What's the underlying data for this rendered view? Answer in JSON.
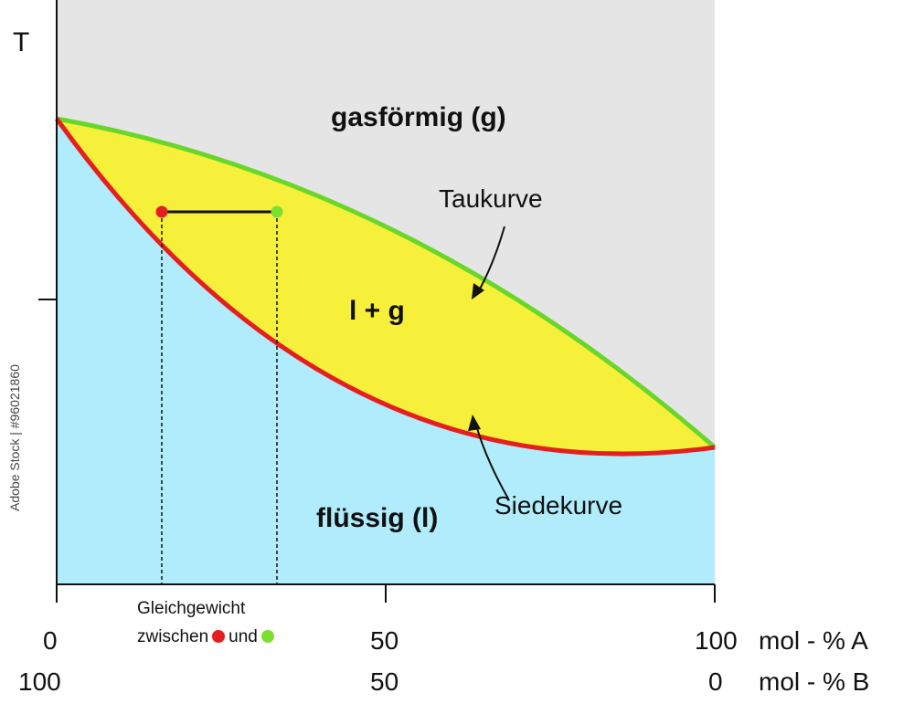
{
  "y_axis_label": "T",
  "regions": {
    "gas": "gasförmig (g)",
    "two_phase": "l + g",
    "liquid": "flüssig (l)"
  },
  "curves": {
    "dew": "Taukurve",
    "boiling": "Siedekurve"
  },
  "equilibrium_note": {
    "line1": "Gleichgewicht",
    "line2_prefix": "zwischen",
    "line2_mid": "und"
  },
  "x_axis_A": {
    "left": "0",
    "mid": "50",
    "right": "100",
    "unit": "mol - % A"
  },
  "x_axis_B": {
    "left": "100",
    "mid": "50",
    "right": "0",
    "unit": "mol - % B"
  },
  "watermark": "Adobe Stock | #96021860",
  "colors": {
    "gas_region": "#e5e5e5",
    "liquid_region": "#b0ecfb",
    "two_phase_region": "#f7f03a",
    "dew_curve": "#6ad62a",
    "boiling_curve": "#e41f1f",
    "liquid_point": "#e41f1f",
    "vapor_point": "#7be02f"
  }
}
